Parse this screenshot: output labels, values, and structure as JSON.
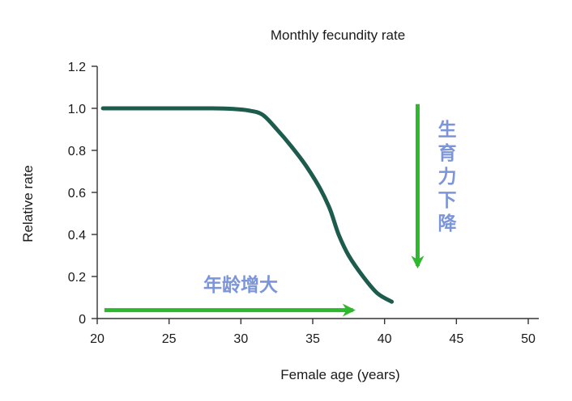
{
  "chart_data": {
    "type": "line",
    "title": "Monthly fecundity rate",
    "xlabel": "Female age (years)",
    "ylabel": "Relative rate",
    "xlim": [
      20,
      50
    ],
    "ylim": [
      0,
      1.2
    ],
    "x_ticks": [
      "20",
      "25",
      "30",
      "35",
      "40",
      "45",
      "50"
    ],
    "y_ticks": [
      "0",
      "0.2",
      "0.4",
      "0.6",
      "0.8",
      "1.0",
      "1.2"
    ],
    "grid": false,
    "series": [
      {
        "color": "#1d5c4c",
        "x": [
          20.4,
          25,
          28,
          29.5,
          30.5,
          31.5,
          32.5,
          33.5,
          34.5,
          35.5,
          36.2,
          36.8,
          37.5,
          38.5,
          39.5,
          40.5
        ],
        "y": [
          1.0,
          1.0,
          1.0,
          0.997,
          0.99,
          0.97,
          0.9,
          0.82,
          0.73,
          0.62,
          0.52,
          0.4,
          0.3,
          0.2,
          0.12,
          0.08
        ]
      }
    ],
    "annotations": [
      {
        "text": "年龄增大",
        "arrow_direction": "right",
        "arrow_color": "#2eb82e",
        "text_color": "#7c95d8",
        "arrow_from": [
          20.5,
          0.04
        ],
        "arrow_to": [
          37.8,
          0.04
        ]
      },
      {
        "text": "生育力下降",
        "arrow_direction": "down",
        "arrow_color": "#2eb82e",
        "text_color": "#7c95d8",
        "arrow_from": [
          42.3,
          1.02
        ],
        "arrow_to": [
          42.3,
          0.25
        ]
      }
    ]
  }
}
